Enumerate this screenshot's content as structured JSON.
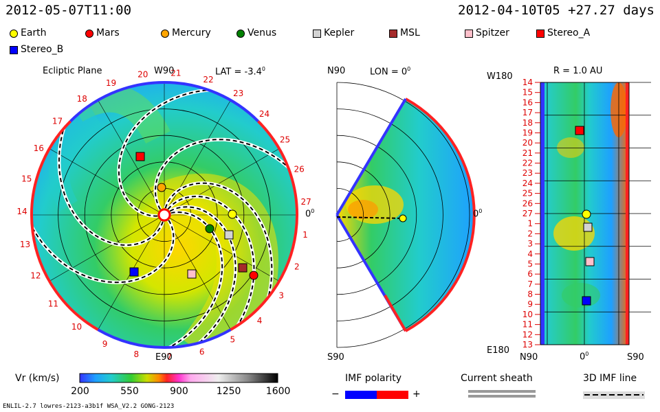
{
  "header": {
    "timestamp_left": "2012-05-07T11:00",
    "timestamp_right": "2012-04-10T05 +27.27 days"
  },
  "legend": [
    {
      "name": "Earth",
      "color": "#ffff00",
      "shape": "circle"
    },
    {
      "name": "Mars",
      "color": "#ff0000",
      "shape": "circle"
    },
    {
      "name": "Mercury",
      "color": "#ffa500",
      "shape": "circle"
    },
    {
      "name": "Venus",
      "color": "#008000",
      "shape": "circle"
    },
    {
      "name": "Kepler",
      "color": "#d3d3d3",
      "shape": "square"
    },
    {
      "name": "MSL",
      "color": "#a52a2a",
      "shape": "square"
    },
    {
      "name": "Spitzer",
      "color": "#ffc0cb",
      "shape": "square"
    },
    {
      "name": "Stereo_A",
      "color": "#ff0000",
      "shape": "square"
    },
    {
      "name": "Stereo_B",
      "color": "#0000ff",
      "shape": "square"
    }
  ],
  "panels": {
    "ecliptic": {
      "title": "Ecliptic Plane",
      "lat": "LAT = -3.4",
      "deg": "0",
      "top": "W90",
      "bottom": "E90",
      "right": "0",
      "rdeg": "0",
      "carrington": [
        "1",
        "2",
        "3",
        "4",
        "5",
        "6",
        "7",
        "8",
        "9",
        "10",
        "11",
        "12",
        "13",
        "14",
        "15",
        "16",
        "17",
        "18",
        "19",
        "20",
        "21",
        "22",
        "23",
        "24",
        "25",
        "26",
        "27"
      ]
    },
    "meridional": {
      "top": "N90",
      "lon": "LON = 0",
      "deg": "0",
      "bottom": "S90",
      "right": "0",
      "rdeg": "0"
    },
    "radial": {
      "title": "R = 1.0 AU",
      "top_left": "W180",
      "bottom_left": "E180",
      "x_left": "N90",
      "x_mid": "0",
      "x_mid_deg": "0",
      "x_right": "S90",
      "rows": [
        "14",
        "15",
        "16",
        "17",
        "18",
        "19",
        "20",
        "21",
        "22",
        "23",
        "24",
        "25",
        "26",
        "27",
        "1",
        "2",
        "3",
        "4",
        "5",
        "6",
        "7",
        "8",
        "9",
        "10",
        "11",
        "12",
        "13"
      ]
    }
  },
  "colorbar": {
    "label": "Vr (km/s)",
    "ticks": [
      "200",
      "550",
      "900",
      "1250",
      "1600"
    ],
    "min": 200,
    "max": 1600
  },
  "imf": {
    "label": "IMF polarity",
    "minus": "−",
    "plus": "+"
  },
  "sheath": {
    "label": "Current sheath"
  },
  "imf3d": {
    "label": "3D IMF line"
  },
  "footer": {
    "model": "ENLIL-2.7 lowres-2123-a3b1f WSA_V2.2 GONG-2123"
  }
}
